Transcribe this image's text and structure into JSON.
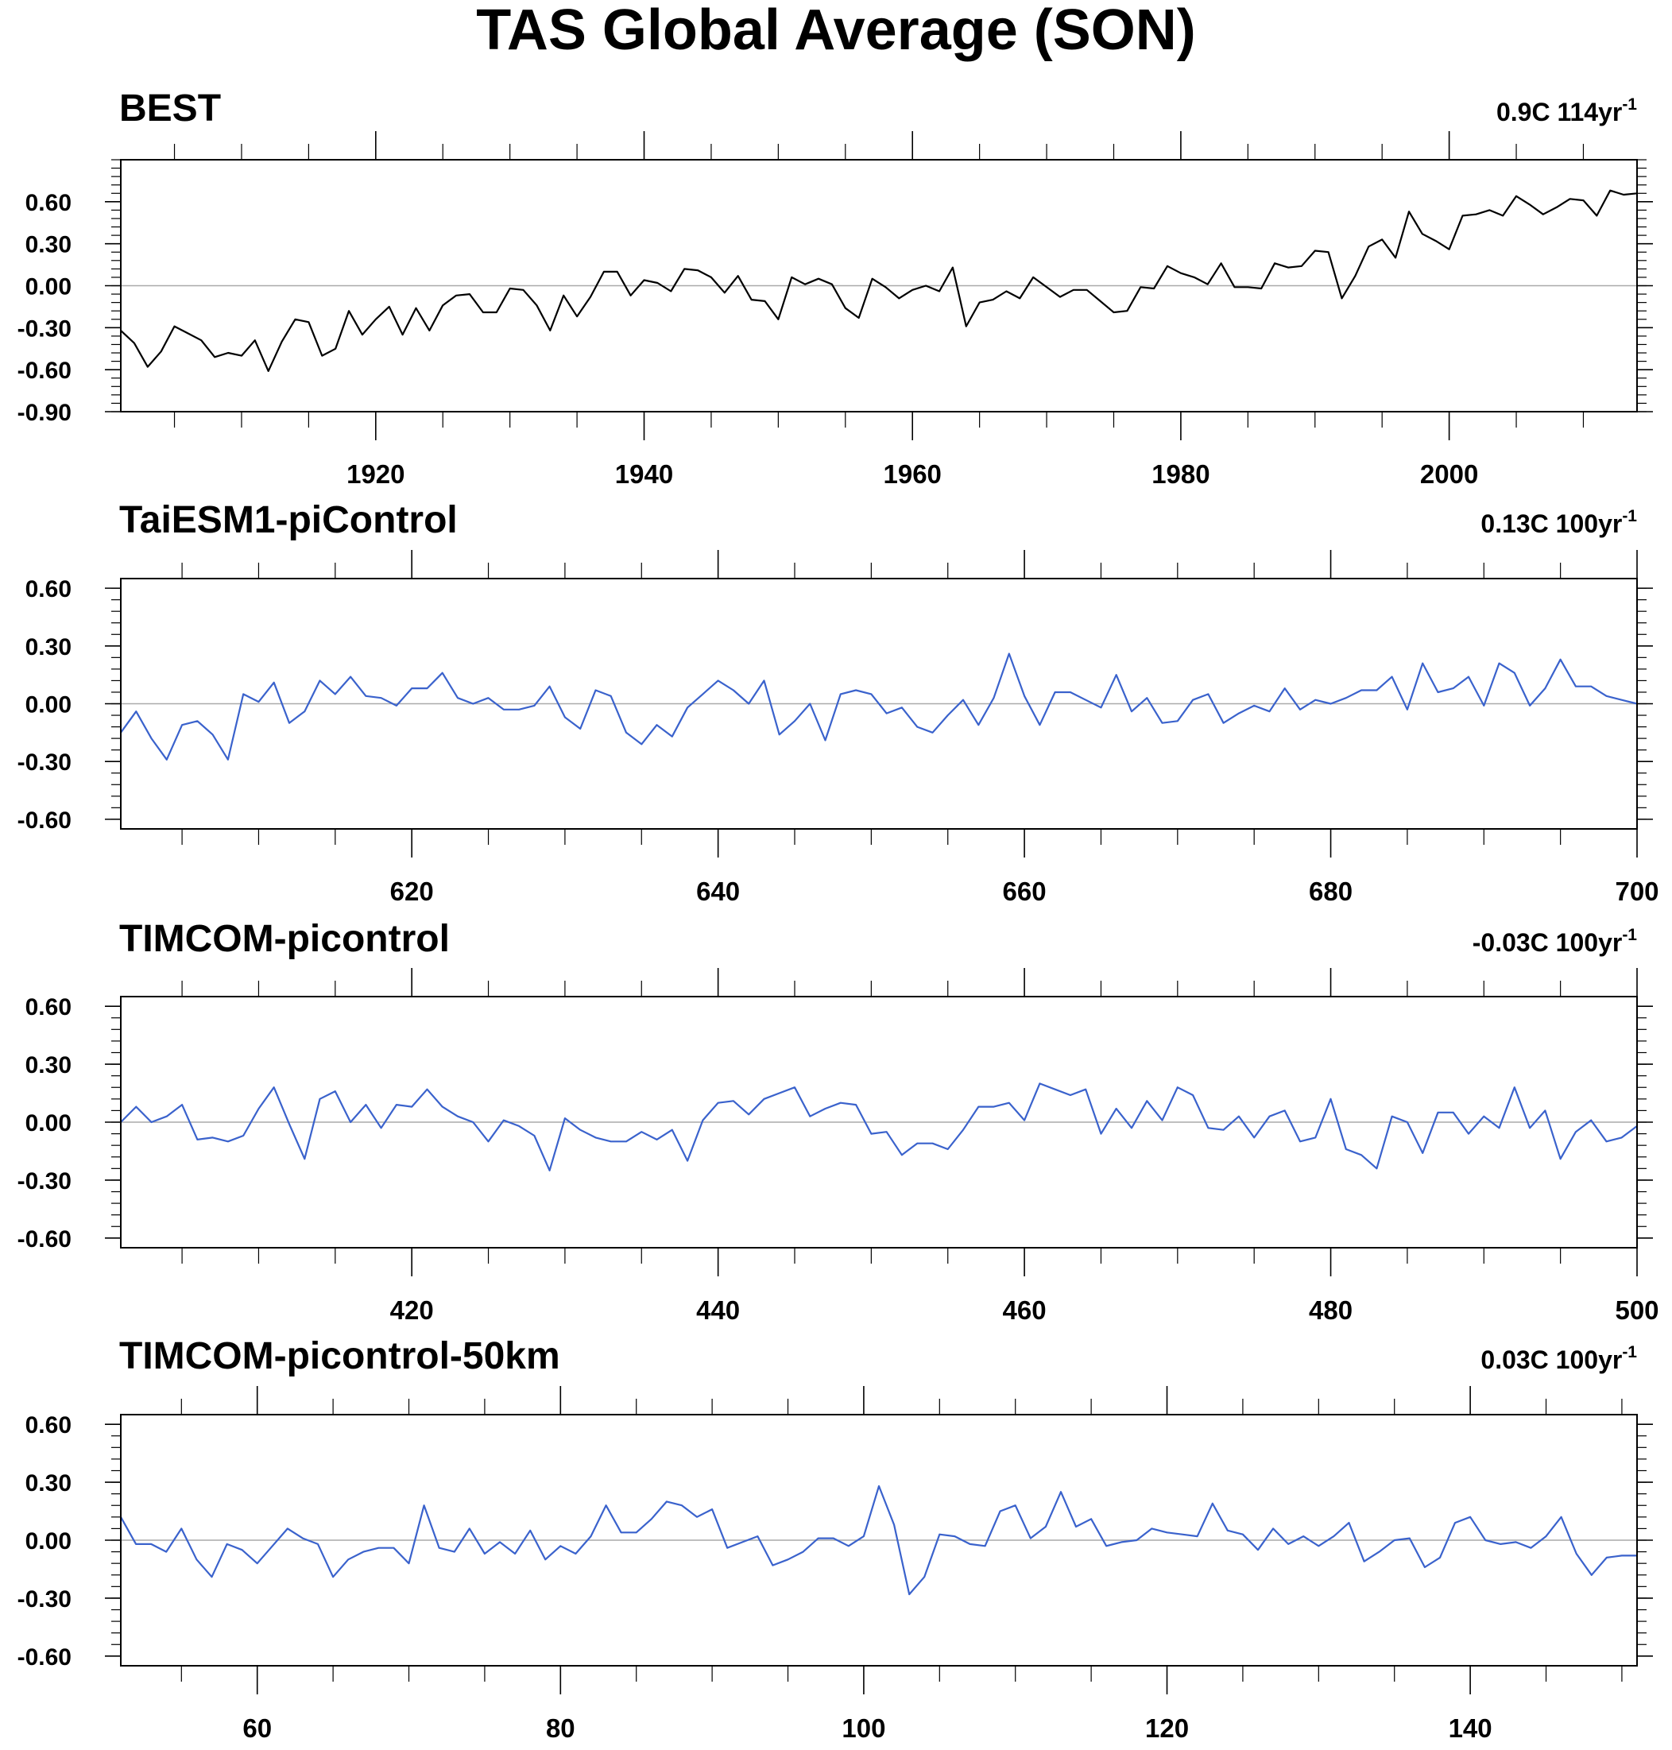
{
  "title": "TAS Global Average (SON)",
  "chart_data": [
    {
      "type": "line",
      "title": "BEST",
      "trend": "0.9C 114yr",
      "trend_sup": "-1",
      "color": "#000000",
      "xlim": [
        1901,
        2014
      ],
      "ylim": [
        -0.9,
        0.9
      ],
      "yticks": [
        -0.9,
        -0.6,
        -0.3,
        0.0,
        0.3,
        0.6
      ],
      "ytick_labels": [
        "-0.90",
        "-0.60",
        "-0.30",
        "0.00",
        "0.30",
        "0.60"
      ],
      "xticks": [
        1920,
        1940,
        1960,
        1980,
        2000
      ],
      "xtick_labels": [
        "1920",
        "1940",
        "1960",
        "1980",
        "2000"
      ],
      "x_start": 1901,
      "x_step": 1,
      "values": [
        -0.32,
        -0.41,
        -0.58,
        -0.47,
        -0.29,
        -0.34,
        -0.39,
        -0.51,
        -0.48,
        -0.5,
        -0.39,
        -0.61,
        -0.4,
        -0.24,
        -0.26,
        -0.5,
        -0.45,
        -0.18,
        -0.35,
        -0.24,
        -0.15,
        -0.35,
        -0.16,
        -0.32,
        -0.14,
        -0.07,
        -0.06,
        -0.19,
        -0.19,
        -0.02,
        -0.03,
        -0.14,
        -0.32,
        -0.07,
        -0.22,
        -0.08,
        0.1,
        0.1,
        -0.07,
        0.04,
        0.02,
        -0.04,
        0.12,
        0.11,
        0.06,
        -0.05,
        0.07,
        -0.1,
        -0.11,
        -0.24,
        0.06,
        0.01,
        0.05,
        0.01,
        -0.16,
        -0.23,
        0.05,
        -0.01,
        -0.09,
        -0.03,
        0.0,
        -0.04,
        0.13,
        -0.29,
        -0.12,
        -0.1,
        -0.04,
        -0.09,
        0.06,
        -0.01,
        -0.08,
        -0.03,
        -0.03,
        -0.11,
        -0.19,
        -0.18,
        -0.01,
        -0.02,
        0.14,
        0.09,
        0.06,
        0.01,
        0.16,
        -0.01,
        -0.01,
        -0.02,
        0.16,
        0.13,
        0.14,
        0.25,
        0.24,
        -0.09,
        0.07,
        0.28,
        0.33,
        0.2,
        0.53,
        0.37,
        0.32,
        0.26,
        0.5,
        0.51,
        0.54,
        0.5,
        0.64,
        0.58,
        0.51,
        0.56,
        0.62,
        0.61,
        0.5,
        0.68,
        0.65,
        0.66
      ]
    },
    {
      "type": "line",
      "title": "TaiESM1-piControl",
      "trend": "0.13C 100yr",
      "trend_sup": "-1",
      "color": "#3a62cc",
      "xlim": [
        601,
        700
      ],
      "ylim": [
        -0.65,
        0.65
      ],
      "yticks": [
        -0.6,
        -0.3,
        0.0,
        0.3,
        0.6
      ],
      "ytick_labels": [
        "-0.60",
        "-0.30",
        "0.00",
        "0.30",
        "0.60"
      ],
      "xticks": [
        620,
        640,
        660,
        680,
        700
      ],
      "xtick_labels": [
        "620",
        "640",
        "660",
        "680",
        "700"
      ],
      "x_start": 601,
      "x_step": 1,
      "values": [
        -0.15,
        -0.04,
        -0.18,
        -0.29,
        -0.11,
        -0.09,
        -0.16,
        -0.29,
        0.05,
        0.01,
        0.11,
        -0.1,
        -0.04,
        0.12,
        0.05,
        0.14,
        0.04,
        0.03,
        -0.01,
        0.08,
        0.08,
        0.16,
        0.03,
        0.0,
        0.03,
        -0.03,
        -0.03,
        -0.01,
        0.09,
        -0.07,
        -0.13,
        0.07,
        0.04,
        -0.15,
        -0.21,
        -0.11,
        -0.17,
        -0.02,
        0.05,
        0.12,
        0.07,
        0.0,
        0.12,
        -0.16,
        -0.09,
        0.0,
        -0.19,
        0.05,
        0.07,
        0.05,
        -0.05,
        -0.02,
        -0.12,
        -0.15,
        -0.06,
        0.02,
        -0.11,
        0.03,
        0.26,
        0.04,
        -0.11,
        0.06,
        0.06,
        0.02,
        -0.02,
        0.15,
        -0.04,
        0.03,
        -0.1,
        -0.09,
        0.02,
        0.05,
        -0.1,
        -0.05,
        -0.01,
        -0.04,
        0.08,
        -0.03,
        0.02,
        0.0,
        0.03,
        0.07,
        0.07,
        0.14,
        -0.03,
        0.21,
        0.06,
        0.08,
        0.14,
        -0.01,
        0.21,
        0.16,
        -0.01,
        0.08,
        0.23,
        0.09,
        0.09,
        0.04,
        0.02,
        0.0
      ]
    },
    {
      "type": "line",
      "title": "TIMCOM-picontrol",
      "trend": "-0.03C 100yr",
      "trend_sup": "-1",
      "color": "#3a62cc",
      "xlim": [
        401,
        500
      ],
      "ylim": [
        -0.65,
        0.65
      ],
      "yticks": [
        -0.6,
        -0.3,
        0.0,
        0.3,
        0.6
      ],
      "ytick_labels": [
        "-0.60",
        "-0.30",
        "0.00",
        "0.30",
        "0.60"
      ],
      "xticks": [
        420,
        440,
        460,
        480,
        500
      ],
      "xtick_labels": [
        "420",
        "440",
        "460",
        "480",
        "500"
      ],
      "x_start": 401,
      "x_step": 1,
      "values": [
        0.0,
        0.08,
        0.0,
        0.03,
        0.09,
        -0.09,
        -0.08,
        -0.1,
        -0.07,
        0.07,
        0.18,
        -0.01,
        -0.19,
        0.12,
        0.16,
        0.0,
        0.09,
        -0.03,
        0.09,
        0.08,
        0.17,
        0.08,
        0.03,
        0.0,
        -0.1,
        0.01,
        -0.02,
        -0.07,
        -0.25,
        0.02,
        -0.04,
        -0.08,
        -0.1,
        -0.1,
        -0.05,
        -0.09,
        -0.04,
        -0.2,
        0.01,
        0.1,
        0.11,
        0.04,
        0.12,
        0.15,
        0.18,
        0.03,
        0.07,
        0.1,
        0.09,
        -0.06,
        -0.05,
        -0.17,
        -0.11,
        -0.11,
        -0.14,
        -0.04,
        0.08,
        0.08,
        0.1,
        0.01,
        0.2,
        0.17,
        0.14,
        0.17,
        -0.06,
        0.07,
        -0.03,
        0.11,
        0.01,
        0.18,
        0.14,
        -0.03,
        -0.04,
        0.03,
        -0.08,
        0.03,
        0.06,
        -0.1,
        -0.08,
        0.12,
        -0.14,
        -0.17,
        -0.24,
        0.03,
        0.0,
        -0.16,
        0.05,
        0.05,
        -0.06,
        0.03,
        -0.03,
        0.18,
        -0.03,
        0.06,
        -0.19,
        -0.05,
        0.01,
        -0.1,
        -0.08,
        -0.02
      ]
    },
    {
      "type": "line",
      "title": "TIMCOM-picontrol-50km",
      "trend": "0.03C 100yr",
      "trend_sup": "-1",
      "color": "#3a62cc",
      "xlim": [
        51,
        151
      ],
      "ylim": [
        -0.65,
        0.65
      ],
      "yticks": [
        -0.6,
        -0.3,
        0.0,
        0.3,
        0.6
      ],
      "ytick_labels": [
        "-0.60",
        "-0.30",
        "0.00",
        "0.30",
        "0.60"
      ],
      "xticks": [
        60,
        80,
        100,
        120,
        140
      ],
      "xtick_labels": [
        "60",
        "80",
        "100",
        "120",
        "140"
      ],
      "x_start": 51,
      "x_step": 1,
      "values": [
        0.12,
        -0.02,
        -0.02,
        -0.06,
        0.06,
        -0.1,
        -0.19,
        -0.02,
        -0.05,
        -0.12,
        -0.03,
        0.06,
        0.01,
        -0.02,
        -0.19,
        -0.1,
        -0.06,
        -0.04,
        -0.04,
        -0.12,
        0.18,
        -0.04,
        -0.06,
        0.06,
        -0.07,
        -0.01,
        -0.07,
        0.05,
        -0.1,
        -0.03,
        -0.07,
        0.02,
        0.18,
        0.04,
        0.04,
        0.11,
        0.2,
        0.18,
        0.12,
        0.16,
        -0.04,
        -0.01,
        0.02,
        -0.13,
        -0.1,
        -0.06,
        0.01,
        0.01,
        -0.03,
        0.02,
        0.28,
        0.08,
        -0.28,
        -0.19,
        0.03,
        0.02,
        -0.02,
        -0.03,
        0.15,
        0.18,
        0.01,
        0.07,
        0.25,
        0.07,
        0.11,
        -0.03,
        -0.01,
        0.0,
        0.06,
        0.04,
        0.03,
        0.02,
        0.19,
        0.05,
        0.03,
        -0.05,
        0.06,
        -0.02,
        0.02,
        -0.03,
        0.02,
        0.09,
        -0.11,
        -0.06,
        0.0,
        0.01,
        -0.14,
        -0.09,
        0.09,
        0.12,
        0.0,
        -0.02,
        -0.01,
        -0.04,
        0.02,
        0.12,
        -0.07,
        -0.18,
        -0.09,
        -0.08,
        -0.08
      ]
    }
  ]
}
